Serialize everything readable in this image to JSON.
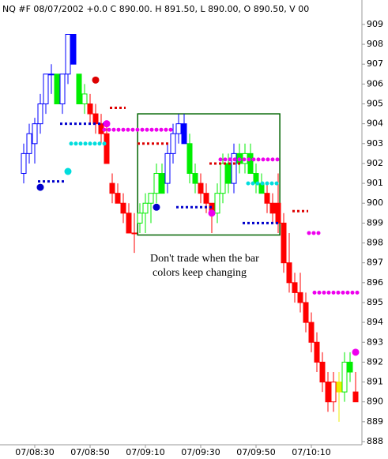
{
  "chart_data": {
    "type": "candlestick",
    "title": "NQ #F 08/07/2002  +0.0 C 890.00. H 891.50, L 890.00, O 890.50,  V      00",
    "annotation": [
      "Don't trade when the bar",
      "colors keep changing"
    ],
    "categories": [
      null,
      null,
      "07/08:30",
      null,
      null,
      null,
      null,
      null,
      null,
      null,
      null,
      null,
      "07/08:50",
      null,
      null,
      null,
      null,
      null,
      null,
      null,
      null,
      null,
      "07/09:10",
      null,
      null,
      null,
      null,
      null,
      null,
      null,
      null,
      null,
      "07/09:30",
      null,
      null,
      null,
      null,
      null,
      null,
      null,
      null,
      null,
      "07/09:50",
      null,
      null,
      null,
      null,
      null,
      null,
      null,
      null,
      null,
      "07/10:10",
      null,
      null,
      null,
      null,
      null,
      null,
      null,
      null
    ],
    "open": [
      901.5,
      902.5,
      903,
      904,
      905,
      906.5,
      906.5,
      905,
      906.5,
      908.5,
      906.5,
      905,
      905,
      904.5,
      904,
      903.5,
      901,
      900.5,
      900,
      899.5,
      898.5,
      899,
      899.5,
      900,
      900.5,
      901.5,
      901,
      902.5,
      903.5,
      904,
      903,
      901.5,
      901,
      900.5,
      900,
      899.5,
      900.5,
      902,
      901,
      902.5,
      902,
      902.5,
      901.5,
      901,
      900.5,
      900,
      900,
      899,
      897,
      896,
      895.5,
      895,
      894,
      893,
      892,
      891,
      890,
      891,
      890.5,
      892,
      890.5
    ],
    "high": [
      903,
      904,
      904.3,
      905.5,
      906.5,
      907,
      906.5,
      906.5,
      908.5,
      908.5,
      906.5,
      906,
      905.5,
      905,
      904.5,
      904,
      901.5,
      901,
      900.5,
      900,
      899.5,
      900,
      900.5,
      900.5,
      902,
      902,
      903,
      904,
      904.5,
      904.5,
      903.5,
      902,
      901.5,
      901,
      900,
      901,
      902.5,
      902.5,
      903,
      903,
      903,
      903,
      902,
      901.5,
      901,
      900.5,
      901.5,
      899.5,
      898.5,
      896.5,
      896.5,
      895.5,
      894.5,
      893.5,
      892.5,
      891.5,
      891.5,
      891.5,
      892.5,
      892.5,
      891.5
    ],
    "low": [
      901,
      902,
      902,
      903.5,
      904.5,
      905.5,
      905,
      904.5,
      906,
      907,
      905,
      904.5,
      904,
      903.5,
      903,
      902,
      900,
      900,
      899,
      898.5,
      897.5,
      898.5,
      898.5,
      899,
      900,
      900.5,
      900.5,
      902,
      903,
      903,
      901,
      900.5,
      900,
      899.5,
      898.5,
      899,
      900,
      900.5,
      900.5,
      901.5,
      901.5,
      901.5,
      900.5,
      900.5,
      899.5,
      899,
      898.5,
      896.5,
      895.5,
      895,
      894.5,
      893.5,
      892.5,
      891.5,
      890.5,
      889.5,
      889.5,
      889,
      890,
      891,
      890
    ],
    "close": [
      902.5,
      903.5,
      904,
      905,
      906.5,
      906.5,
      905,
      906.5,
      908.5,
      907,
      905,
      905.5,
      904.5,
      904,
      903.5,
      902,
      900.5,
      900,
      899.5,
      898.5,
      898.5,
      899.5,
      900,
      900.5,
      901.5,
      900.5,
      902.5,
      903.5,
      904,
      903,
      901.5,
      901,
      900.5,
      900,
      899.5,
      900.5,
      902,
      901,
      902.5,
      902,
      902.5,
      901.5,
      901,
      900.5,
      900,
      899.5,
      899,
      897,
      896,
      895.5,
      895,
      894,
      893,
      892,
      891,
      890,
      891,
      890.5,
      892,
      891.5,
      890
    ],
    "colors": [
      "#0000ff",
      "#0000ff",
      "#0000ff",
      "#0000ff",
      "#0000ff",
      "#0000ff",
      "#00ee00",
      "#0000ff",
      "#0000ff",
      "#0000ff",
      "#00ee00",
      "#00ee00",
      "#ff0000",
      "#ff0000",
      "#ff0000",
      "#ff0000",
      "#ff0000",
      "#ff0000",
      "#ff0000",
      "#ff0000",
      "#ff0000",
      "#00ee00",
      "#00ee00",
      "#00ee00",
      "#00ee00",
      "#00ee00",
      "#0000ff",
      "#0000ff",
      "#0000ff",
      "#0000ff",
      "#00ee00",
      "#00ee00",
      "#ff0000",
      "#ff0000",
      "#ff0000",
      "#00ee00",
      "#00ee00",
      "#00ee00",
      "#0000ff",
      "#00ee00",
      "#00ee00",
      "#00ee00",
      "#00ee00",
      "#00ee00",
      "#ff0000",
      "#ff0000",
      "#ff0000",
      "#ff0000",
      "#ff0000",
      "#ff0000",
      "#ff0000",
      "#ff0000",
      "#ff0000",
      "#ff0000",
      "#ff0000",
      "#ff0000",
      "#ff0000",
      "#eeee00",
      "#00ee00",
      "#00ee00",
      "#ff0000"
    ],
    "levels": [
      {
        "color": "#0000cc",
        "y": 901.1,
        "x0": 3,
        "x1": 7,
        "style": "dash"
      },
      {
        "color": "#0000cc",
        "y": 900.8,
        "x0": 3,
        "x1": 3,
        "style": "dot"
      },
      {
        "color": "#0000cc",
        "y": 904,
        "x0": 7,
        "x1": 15,
        "style": "dash"
      },
      {
        "color": "#dd0000",
        "y": 904.8,
        "x0": 16,
        "x1": 18,
        "style": "dash"
      },
      {
        "color": "#dd0000",
        "y": 906.2,
        "x0": 13,
        "x1": 13,
        "style": "dot"
      },
      {
        "color": "#00dddd",
        "y": 903,
        "x0": 9,
        "x1": 15,
        "style": "dots"
      },
      {
        "color": "#00dddd",
        "y": 901.6,
        "x0": 8,
        "x1": 8,
        "style": "dot"
      },
      {
        "color": "#ee00ee",
        "y": 903.7,
        "x0": 15,
        "x1": 27,
        "style": "dots"
      },
      {
        "color": "#ee00ee",
        "y": 904,
        "x0": 15,
        "x1": 15,
        "style": "dot"
      },
      {
        "color": "#dd0000",
        "y": 903,
        "x0": 21,
        "x1": 26,
        "style": "dash"
      },
      {
        "color": "#0000cc",
        "y": 899.8,
        "x0": 28,
        "x1": 34,
        "style": "dash"
      },
      {
        "color": "#0000cc",
        "y": 899.8,
        "x0": 24,
        "x1": 24,
        "style": "dot"
      },
      {
        "color": "#ee00ee",
        "y": 902.2,
        "x0": 36,
        "x1": 46,
        "style": "dots"
      },
      {
        "color": "#dd0000",
        "y": 902,
        "x0": 34,
        "x1": 39,
        "style": "dash"
      },
      {
        "color": "#00dddd",
        "y": 901,
        "x0": 41,
        "x1": 46,
        "style": "dots"
      },
      {
        "color": "#0000cc",
        "y": 899,
        "x0": 40,
        "x1": 46,
        "style": "dash"
      },
      {
        "color": "#ee00ee",
        "y": 899.5,
        "x0": 34,
        "x1": 34,
        "style": "dot"
      },
      {
        "color": "#dd0000",
        "y": 899.6,
        "x0": 49,
        "x1": 51,
        "style": "dash"
      },
      {
        "color": "#ee00ee",
        "y": 898.5,
        "x0": 52,
        "x1": 53,
        "style": "dots"
      },
      {
        "color": "#ee00ee",
        "y": 895.5,
        "x0": 53,
        "x1": 60,
        "style": "dots"
      },
      {
        "color": "#ee00ee",
        "y": 892.5,
        "x0": 60,
        "x1": 60,
        "style": "dot"
      }
    ],
    "box": {
      "x": [
        20.6,
        46.3
      ],
      "y": [
        904.5,
        898.4
      ]
    },
    "ylim": [
      887.84,
      910.23
    ],
    "yticks": [
      888,
      889,
      890,
      891,
      892,
      893,
      894,
      895,
      896,
      897,
      898,
      899,
      900,
      901,
      902,
      903,
      904,
      905,
      906,
      907,
      908,
      909
    ]
  }
}
